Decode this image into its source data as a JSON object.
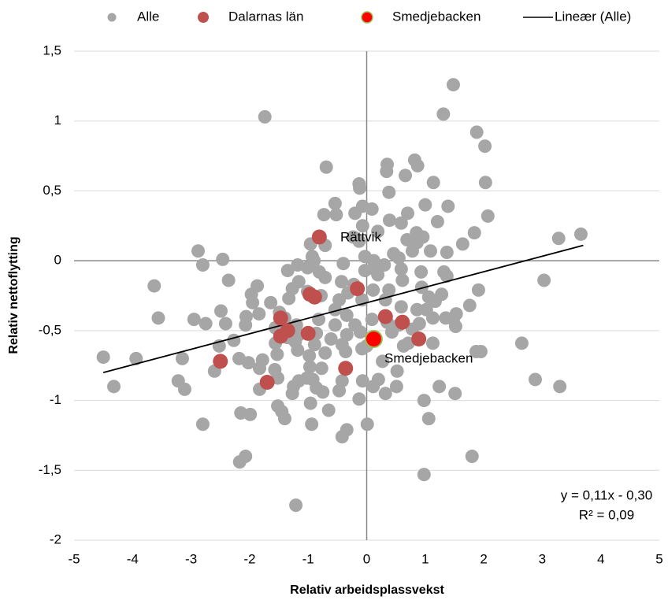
{
  "chart_data": {
    "type": "scatter",
    "x_label": "Relativ arbeidsplassvekst",
    "y_label": "Relativ nettoflytting",
    "xlim": [
      -5,
      5
    ],
    "ylim": [
      -2,
      1.5
    ],
    "xticks": [
      -5,
      -4,
      -3,
      -2,
      -1,
      0,
      1,
      2,
      3,
      4,
      5
    ],
    "yticks": [
      {
        "value": 1.5,
        "label": "1,5"
      },
      1,
      {
        "value": 0.5,
        "label": "0,5"
      },
      0,
      {
        "value": -0.5,
        "label": "-0,5"
      },
      -1,
      {
        "value": -1.5,
        "label": "-1,5"
      },
      -2
    ],
    "grid": true,
    "legend": "top",
    "series": [
      {
        "name": "Alle",
        "color": "#a6a6a6",
        "x": [
          1.48,
          -1.74,
          1.31,
          1.88,
          2.02,
          -0.69,
          0.35,
          0.82,
          0.87,
          0.66,
          0.34,
          -0.13,
          -0.12,
          1.14,
          2.03,
          0.38,
          -0.54,
          1.0,
          1.39,
          -0.07,
          0.09,
          -0.73,
          -0.52,
          0.7,
          2.07,
          -0.2,
          0.39,
          -0.07,
          0.59,
          1.21,
          1.84,
          0.85,
          0.19,
          0.96,
          0.69,
          -0.13,
          -0.23,
          0.86,
          1.64,
          3.28,
          3.66,
          -0.96,
          -0.71,
          0.78,
          1.09,
          1.37,
          0.46,
          -0.03,
          0.55,
          -0.93,
          -0.9,
          -0.4,
          0.12,
          0.3,
          -2.88,
          -2.46,
          -2.8,
          -1.18,
          -1.01,
          -1.35,
          -0.81,
          -0.03,
          0.13,
          0.59,
          0.93,
          1.32,
          1.37,
          0.19,
          -0.43,
          -0.71,
          -2.36,
          0.61,
          -3.63,
          -1.87,
          -1.97,
          -1.16,
          -1.27,
          -1.01,
          -0.78,
          -0.22,
          0.11,
          0.38,
          0.94,
          1.06,
          1.17,
          1.28,
          1.91,
          3.03,
          -1.95,
          -1.64,
          -1.33,
          -0.47,
          -0.32,
          -0.08,
          0.32,
          0.59,
          0.86,
          1.02,
          1.76,
          1.53,
          -1.49,
          -1.84,
          -2.06,
          -0.54,
          -0.34,
          -2.49,
          -3.56,
          -2.95,
          -2.75,
          -2.41,
          -2.07,
          -1.4,
          -1.2,
          -0.82,
          -0.54,
          -0.2,
          0.09,
          0.35,
          0.55,
          0.9,
          1.13,
          1.35,
          1.48,
          1.52,
          0.78,
          -1.56,
          -1.16,
          -0.86,
          -0.61,
          -0.34,
          -0.11,
          0.43,
          -1.56,
          -1.35,
          -1.22,
          -2.27,
          -2.52,
          -0.89,
          -0.42,
          -0.08,
          0.0,
          0.63,
          1.13,
          0.71,
          1.87,
          1.95,
          2.65,
          -4.5,
          -3.94,
          -3.15,
          -2.18,
          -2.02,
          -1.78,
          -1.53,
          -1.18,
          -0.98,
          -0.71,
          -0.36,
          0.27,
          -1.83,
          -1.57,
          -0.97,
          -0.77,
          0.52,
          -2.6,
          -1.52,
          -1.16,
          -1.02,
          -0.92,
          -0.42,
          -0.07,
          -4.32,
          -3.22,
          -3.11,
          -1.83,
          -1.25,
          -0.86,
          -0.47,
          0.11,
          0.2,
          0.51,
          0.32,
          1.24,
          1.51,
          2.88,
          3.3,
          -1.27,
          -0.75,
          0.98,
          -0.13,
          -0.96,
          -1.52,
          -1.45,
          -0.65,
          -2.15,
          -1.99,
          -1.4,
          1.06,
          -0.94,
          -2.8,
          0.01,
          -0.34,
          -0.42,
          -2.07,
          -2.17,
          1.8,
          0.98,
          -1.21
        ],
        "values": [
          1.26,
          1.03,
          1.05,
          0.92,
          0.82,
          0.67,
          0.69,
          0.72,
          0.68,
          0.61,
          0.64,
          0.55,
          0.52,
          0.56,
          0.56,
          0.49,
          0.41,
          0.4,
          0.39,
          0.39,
          0.37,
          0.33,
          0.33,
          0.34,
          0.32,
          0.34,
          0.29,
          0.25,
          0.27,
          0.28,
          0.2,
          0.2,
          0.21,
          0.17,
          0.15,
          0.14,
          0.17,
          0.13,
          0.12,
          0.16,
          0.19,
          0.12,
          0.11,
          0.07,
          0.07,
          0.06,
          0.05,
          0.03,
          0.02,
          0.03,
          0.0,
          -0.02,
          0.0,
          -0.03,
          0.07,
          0.01,
          -0.03,
          -0.03,
          -0.05,
          -0.07,
          -0.08,
          -0.07,
          -0.06,
          -0.06,
          -0.08,
          -0.08,
          -0.11,
          -0.1,
          -0.15,
          -0.12,
          -0.14,
          -0.14,
          -0.18,
          -0.18,
          -0.24,
          -0.15,
          -0.2,
          -0.22,
          -0.25,
          -0.17,
          -0.21,
          -0.21,
          -0.19,
          -0.26,
          -0.29,
          -0.24,
          -0.21,
          -0.14,
          -0.3,
          -0.3,
          -0.27,
          -0.28,
          -0.23,
          -0.28,
          -0.28,
          -0.33,
          -0.35,
          -0.35,
          -0.32,
          -0.38,
          -0.37,
          -0.38,
          -0.4,
          -0.35,
          -0.39,
          -0.36,
          -0.41,
          -0.42,
          -0.45,
          -0.45,
          -0.46,
          -0.41,
          -0.46,
          -0.42,
          -0.46,
          -0.46,
          -0.42,
          -0.44,
          -0.46,
          -0.45,
          -0.41,
          -0.41,
          -0.42,
          -0.47,
          -0.49,
          -0.48,
          -0.53,
          -0.52,
          -0.56,
          -0.53,
          -0.51,
          -0.51,
          -0.59,
          -0.55,
          -0.58,
          -0.57,
          -0.61,
          -0.6,
          -0.6,
          -0.63,
          -0.61,
          -0.61,
          -0.59,
          -0.59,
          -0.65,
          -0.65,
          -0.59,
          -0.69,
          -0.7,
          -0.7,
          -0.7,
          -0.73,
          -0.71,
          -0.67,
          -0.64,
          -0.68,
          -0.66,
          -0.65,
          -0.72,
          -0.77,
          -0.78,
          -0.76,
          -0.77,
          -0.79,
          -0.79,
          -0.84,
          -0.86,
          -0.84,
          -0.85,
          -0.86,
          -0.86,
          -0.9,
          -0.86,
          -0.92,
          -0.92,
          -0.9,
          -0.91,
          -0.93,
          -0.9,
          -0.85,
          -0.9,
          -0.95,
          -0.9,
          -0.95,
          -0.85,
          -0.9,
          -0.95,
          -0.94,
          -1.0,
          -0.99,
          -1.02,
          -1.04,
          -1.08,
          -1.07,
          -1.09,
          -1.1,
          -1.13,
          -1.13,
          -1.17,
          -1.17,
          -1.17,
          -1.21,
          -1.26,
          -1.4,
          -1.44,
          -1.4,
          -1.53,
          -1.75
        ]
      },
      {
        "name": "Dalarnas län",
        "color": "#c0504d",
        "x": [
          -0.81,
          -0.16,
          -0.97,
          -0.89,
          -1.47,
          -1.35,
          -1.47,
          -1.0,
          0.32,
          0.61,
          0.89,
          -2.5,
          -1.7,
          -0.36
        ],
        "values": [
          0.17,
          -0.2,
          -0.24,
          -0.26,
          -0.41,
          -0.5,
          -0.54,
          -0.52,
          -0.4,
          -0.44,
          -0.56,
          -0.72,
          -0.87,
          -0.77
        ]
      },
      {
        "name": "Smedjebacken",
        "color": "#ff0000",
        "edge_color": "#9bbb59",
        "x": [
          0.12
        ],
        "values": [
          -0.56
        ]
      }
    ],
    "trendline": {
      "name": "Lineær (Alle)",
      "color": "#000000",
      "x": [
        -4.5,
        3.7
      ],
      "values": [
        -0.8,
        0.11
      ]
    },
    "annotations": [
      "Rättvik",
      "Smedjebacken",
      "y = 0,11x - 0,30",
      "R² = 0,09"
    ]
  }
}
